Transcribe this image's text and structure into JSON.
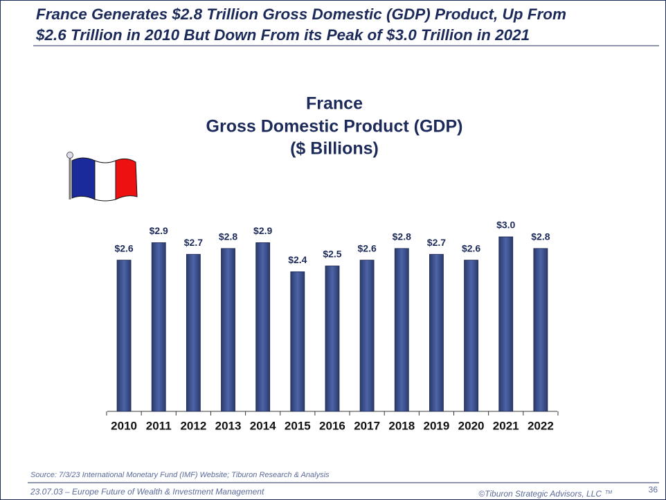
{
  "header": {
    "title_lines": [
      "France Generates $2.8 Trillion Gross Domestic (GDP) Product, Up From",
      "$2.6 Trillion in 2010 But Down From its Peak of $3.0 Trillion in 2021"
    ]
  },
  "chart_data": {
    "type": "bar",
    "title_lines": [
      "France",
      "Gross Domestic Product (GDP)",
      "($ Billions)"
    ],
    "categories": [
      "2010",
      "2011",
      "2012",
      "2013",
      "2014",
      "2015",
      "2016",
      "2017",
      "2018",
      "2019",
      "2020",
      "2021",
      "2022"
    ],
    "values": [
      2.6,
      2.9,
      2.7,
      2.8,
      2.9,
      2.4,
      2.5,
      2.6,
      2.8,
      2.7,
      2.6,
      3.0,
      2.8
    ],
    "value_labels": [
      "$2.6",
      "$2.9",
      "$2.7",
      "$2.8",
      "$2.9",
      "$2.4",
      "$2.5",
      "$2.6",
      "$2.8",
      "$2.7",
      "$2.6",
      "$3.0",
      "$2.8"
    ],
    "color": "#2a3a6b"
  },
  "footer": {
    "source": "Source:  7/3/23 International Monetary Fund (IMF) Website; Tiburon Research & Analysis",
    "left": "23.07.03 – Europe Future of Wealth & Investment Management",
    "right": "©Tiburon Strategic Advisors, LLC",
    "trademark": "TM",
    "page": "36"
  }
}
